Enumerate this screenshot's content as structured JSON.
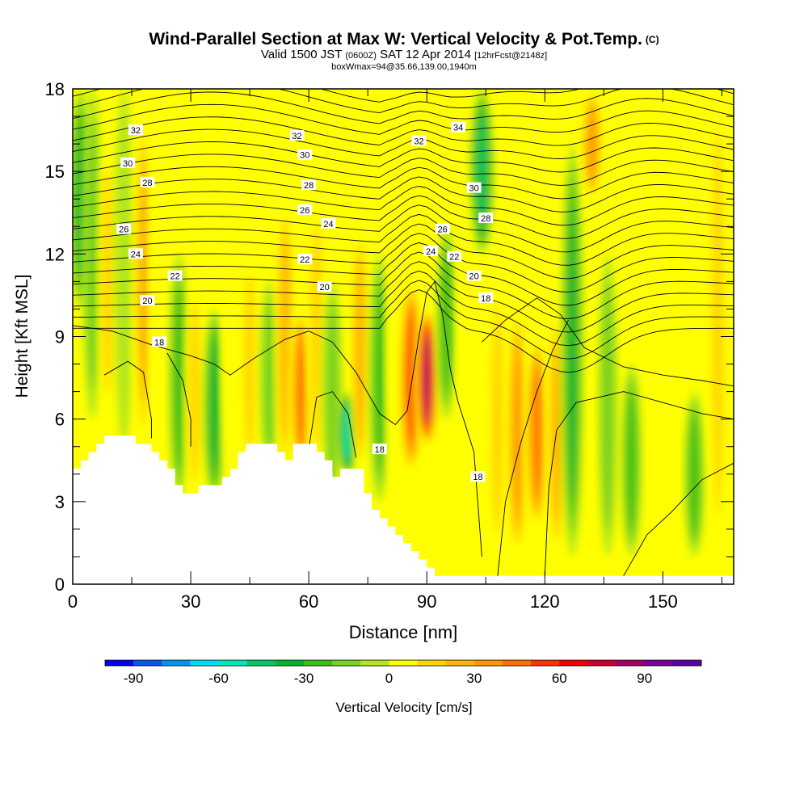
{
  "header": {
    "title": "Wind-Parallel Section at Max W: Vertical Velocity & Pot.Temp.",
    "title_mark": "(C)",
    "valid_prefix": "Valid 1500 JST",
    "valid_utc": "(0600Z)",
    "valid_date": "SAT 12 Apr 2014",
    "forecast": "[12hrFcst@2148z]",
    "box_info": "boxWmax=94@35.66,139.00,1940m"
  },
  "chart_data": {
    "type": "heatmap",
    "xlabel": "Distance [nm]",
    "ylabel": "Height [Kft MSL]",
    "xlim": [
      0,
      168
    ],
    "ylim": [
      0,
      18
    ],
    "x_ticks": [
      "0",
      "30",
      "60",
      "90",
      "120",
      "150"
    ],
    "y_ticks": [
      "0",
      "3",
      "6",
      "9",
      "12",
      "15",
      "18"
    ],
    "colorbar": {
      "label": "Vertical Velocity [cm/s]",
      "range": [
        -100,
        110
      ],
      "step": 10,
      "tick_labels": [
        "-90",
        "-60",
        "-30",
        "0",
        "30",
        "60",
        "90"
      ],
      "colors": [
        "#0000f0",
        "#0a55f0",
        "#0096f0",
        "#00dcf0",
        "#00e6b4",
        "#00c864",
        "#00b432",
        "#3cbe14",
        "#78d21e",
        "#b4e61e",
        "#ffff00",
        "#ffd700",
        "#ffb400",
        "#ff9600",
        "#ff6e00",
        "#ff3200",
        "#f00000",
        "#c80032",
        "#a00064",
        "#780096",
        "#5a00a0"
      ]
    },
    "terrain_top_kft": [
      [
        0,
        4.2
      ],
      [
        2,
        4.2
      ],
      [
        2,
        4.5
      ],
      [
        4,
        4.5
      ],
      [
        4,
        4.8
      ],
      [
        6,
        4.8
      ],
      [
        6,
        5.1
      ],
      [
        8,
        5.1
      ],
      [
        8,
        5.4
      ],
      [
        10,
        5.4
      ],
      [
        16,
        5.4
      ],
      [
        16,
        5.1
      ],
      [
        20,
        5.1
      ],
      [
        20,
        4.8
      ],
      [
        22,
        4.8
      ],
      [
        22,
        4.5
      ],
      [
        24,
        4.5
      ],
      [
        24,
        4.2
      ],
      [
        26,
        4.2
      ],
      [
        26,
        3.6
      ],
      [
        28,
        3.6
      ],
      [
        28,
        3.3
      ],
      [
        32,
        3.3
      ],
      [
        32,
        3.6
      ],
      [
        38,
        3.6
      ],
      [
        38,
        3.9
      ],
      [
        40,
        3.9
      ],
      [
        40,
        4.2
      ],
      [
        42,
        4.2
      ],
      [
        42,
        4.8
      ],
      [
        44,
        4.8
      ],
      [
        44,
        5.1
      ],
      [
        52,
        5.1
      ],
      [
        52,
        4.8
      ],
      [
        54,
        4.8
      ],
      [
        54,
        4.5
      ],
      [
        56,
        4.5
      ],
      [
        56,
        5.1
      ],
      [
        62,
        5.1
      ],
      [
        62,
        4.8
      ],
      [
        64,
        4.8
      ],
      [
        64,
        4.5
      ],
      [
        66,
        4.5
      ],
      [
        66,
        3.9
      ],
      [
        68,
        3.9
      ],
      [
        68,
        4.2
      ],
      [
        74,
        4.2
      ],
      [
        74,
        3.3
      ],
      [
        76,
        3.3
      ],
      [
        76,
        2.7
      ],
      [
        78,
        2.7
      ],
      [
        78,
        2.4
      ],
      [
        80,
        2.4
      ],
      [
        80,
        2.1
      ],
      [
        82,
        2.1
      ],
      [
        82,
        1.8
      ],
      [
        84,
        1.8
      ],
      [
        84,
        1.5
      ],
      [
        86,
        1.5
      ],
      [
        86,
        1.2
      ],
      [
        88,
        1.2
      ],
      [
        88,
        0.9
      ],
      [
        90,
        0.9
      ],
      [
        90,
        0.6
      ],
      [
        92,
        0.6
      ],
      [
        92,
        0.3
      ],
      [
        94,
        0.3
      ],
      [
        94,
        0.3
      ],
      [
        96,
        0.3
      ],
      [
        168,
        0.3
      ]
    ],
    "w_columns": [
      {
        "x": 2,
        "w": -40,
        "top": 18,
        "bottom": 10
      },
      {
        "x": 5,
        "w": -20,
        "top": 18,
        "bottom": 6
      },
      {
        "x": 9,
        "w": 15,
        "top": 16,
        "bottom": 6
      },
      {
        "x": 13,
        "w": -5,
        "top": 18,
        "bottom": 5
      },
      {
        "x": 18,
        "w": 30,
        "top": 17,
        "bottom": 5
      },
      {
        "x": 22,
        "w": 10,
        "top": 18,
        "bottom": 4
      },
      {
        "x": 27,
        "w": -25,
        "top": 12,
        "bottom": 3
      },
      {
        "x": 31,
        "w": 20,
        "top": 11,
        "bottom": 3
      },
      {
        "x": 36,
        "w": -35,
        "top": 10,
        "bottom": 3
      },
      {
        "x": 40,
        "w": 5,
        "top": 11,
        "bottom": 4
      },
      {
        "x": 45,
        "w": 15,
        "top": 12,
        "bottom": 4
      },
      {
        "x": 50,
        "w": -15,
        "top": 11,
        "bottom": 4
      },
      {
        "x": 54,
        "w": 25,
        "top": 14,
        "bottom": 4
      },
      {
        "x": 58,
        "w": 45,
        "top": 10,
        "bottom": 4
      },
      {
        "x": 62,
        "w": 15,
        "top": 14,
        "bottom": 4
      },
      {
        "x": 66,
        "w": -20,
        "top": 11,
        "bottom": 3
      },
      {
        "x": 70,
        "w": -55,
        "top": 7,
        "bottom": 4
      },
      {
        "x": 73,
        "w": 25,
        "top": 13,
        "bottom": 4
      },
      {
        "x": 78,
        "w": -30,
        "top": 12,
        "bottom": 3
      },
      {
        "x": 82,
        "w": 10,
        "top": 13,
        "bottom": 3
      },
      {
        "x": 86,
        "w": 60,
        "top": 11,
        "bottom": 4
      },
      {
        "x": 90,
        "w": 94,
        "top": 10,
        "bottom": 5
      },
      {
        "x": 95,
        "w": -25,
        "top": 13,
        "bottom": 6
      },
      {
        "x": 100,
        "w": 5,
        "top": 18,
        "bottom": 1
      },
      {
        "x": 104,
        "w": -50,
        "top": 18,
        "bottom": 12
      },
      {
        "x": 108,
        "w": 20,
        "top": 11,
        "bottom": 1
      },
      {
        "x": 113,
        "w": 35,
        "top": 10,
        "bottom": 1
      },
      {
        "x": 118,
        "w": 50,
        "top": 9,
        "bottom": 2
      },
      {
        "x": 123,
        "w": 25,
        "top": 10,
        "bottom": 1
      },
      {
        "x": 127,
        "w": -35,
        "top": 16,
        "bottom": 1
      },
      {
        "x": 132,
        "w": 35,
        "top": 18,
        "bottom": 14
      },
      {
        "x": 136,
        "w": -15,
        "top": 12,
        "bottom": 1
      },
      {
        "x": 142,
        "w": -25,
        "top": 8,
        "bottom": 1
      },
      {
        "x": 150,
        "w": 5,
        "top": 6,
        "bottom": 1
      },
      {
        "x": 158,
        "w": -25,
        "top": 7,
        "bottom": 1
      },
      {
        "x": 164,
        "w": 15,
        "top": 18,
        "bottom": 1
      }
    ],
    "theta_labels": [
      {
        "v": "32",
        "x": 16,
        "y": 16.5
      },
      {
        "v": "30",
        "x": 14,
        "y": 15.3
      },
      {
        "v": "28",
        "x": 19,
        "y": 14.6
      },
      {
        "v": "26",
        "x": 13,
        "y": 12.9
      },
      {
        "v": "24",
        "x": 16,
        "y": 12.0
      },
      {
        "v": "22",
        "x": 26,
        "y": 11.2
      },
      {
        "v": "20",
        "x": 19,
        "y": 10.3
      },
      {
        "v": "18",
        "x": 22,
        "y": 8.8
      },
      {
        "v": "32",
        "x": 57,
        "y": 16.3
      },
      {
        "v": "30",
        "x": 59,
        "y": 15.6
      },
      {
        "v": "28",
        "x": 60,
        "y": 14.5
      },
      {
        "v": "26",
        "x": 59,
        "y": 13.6
      },
      {
        "v": "24",
        "x": 65,
        "y": 13.1
      },
      {
        "v": "22",
        "x": 59,
        "y": 11.8
      },
      {
        "v": "20",
        "x": 64,
        "y": 10.8
      },
      {
        "v": "32",
        "x": 88,
        "y": 16.1
      },
      {
        "v": "34",
        "x": 98,
        "y": 16.6
      },
      {
        "v": "30",
        "x": 102,
        "y": 14.4
      },
      {
        "v": "28",
        "x": 105,
        "y": 13.3
      },
      {
        "v": "26",
        "x": 94,
        "y": 12.9
      },
      {
        "v": "24",
        "x": 91,
        "y": 12.1
      },
      {
        "v": "22",
        "x": 97,
        "y": 11.9
      },
      {
        "v": "20",
        "x": 102,
        "y": 11.2
      },
      {
        "v": "18",
        "x": 105,
        "y": 10.4
      },
      {
        "v": "18",
        "x": 78,
        "y": 4.9
      },
      {
        "v": "18",
        "x": 103,
        "y": 3.9
      }
    ]
  }
}
